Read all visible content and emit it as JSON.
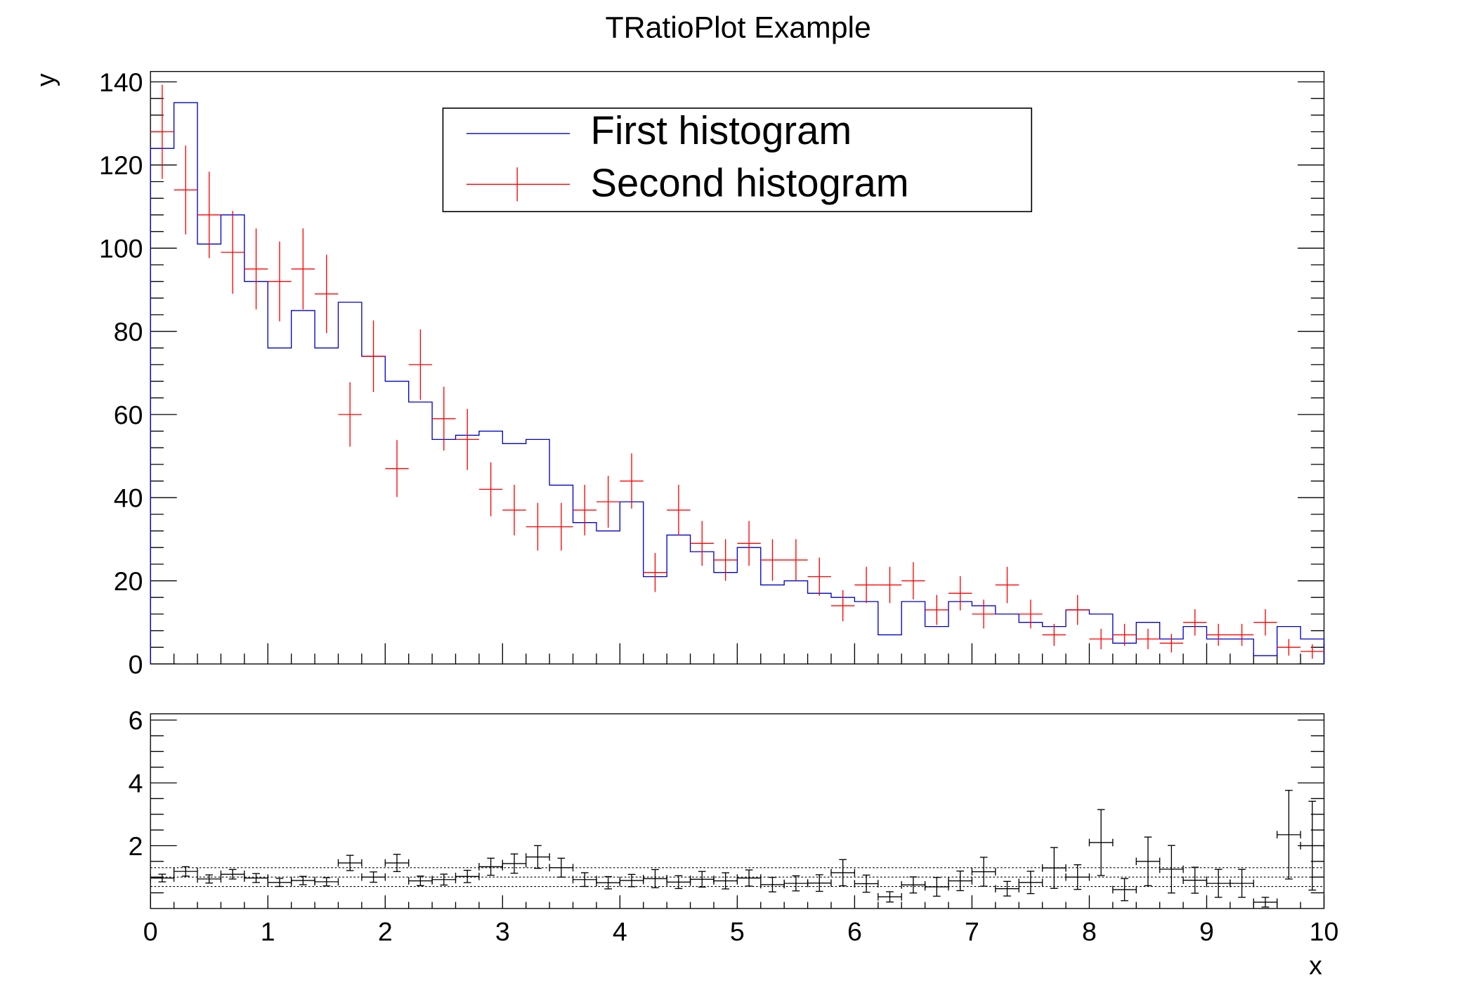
{
  "chart_data": [
    {
      "type": "bar",
      "title": "TRatioPlot Example",
      "xlabel": "",
      "ylabel": "y",
      "xlim": [
        0,
        10
      ],
      "ylim": [
        0,
        142.5
      ],
      "bin_width": 0.2,
      "grid": false,
      "legend_position": "top-center",
      "y_ticks": [
        "0",
        "20",
        "40",
        "60",
        "80",
        "100",
        "120",
        "140"
      ],
      "series": [
        {
          "name": "First histogram",
          "style": "step",
          "color": "#0000cc",
          "values": [
            124,
            135,
            101,
            108,
            92,
            76,
            85,
            76,
            87,
            74,
            68,
            63,
            54,
            55,
            56,
            53,
            54,
            43,
            34,
            32,
            39,
            21,
            31,
            27,
            22,
            28,
            19,
            20,
            17,
            16,
            15,
            7,
            15,
            9,
            15,
            14,
            12,
            10,
            9,
            13,
            12,
            5,
            10,
            6,
            9,
            6,
            6,
            2,
            9,
            6
          ]
        },
        {
          "name": "Second histogram",
          "style": "errorbar",
          "color": "#ff0000",
          "values": [
            128,
            114,
            108,
            99,
            95,
            92,
            95,
            89,
            60,
            74,
            47,
            72,
            59,
            54,
            42,
            37,
            33,
            33,
            37,
            39,
            44,
            22,
            37,
            29,
            25,
            29,
            25,
            25,
            21,
            14,
            19,
            19,
            20,
            13,
            17,
            12,
            19,
            12,
            7,
            13,
            6,
            7,
            6,
            5,
            10,
            7,
            7,
            10,
            4,
            3
          ]
        }
      ]
    },
    {
      "type": "scatter",
      "xlabel": "x",
      "ylabel": "",
      "xlim": [
        0,
        10
      ],
      "ylim": [
        0,
        6.2
      ],
      "x_ticks": [
        "0",
        "1",
        "2",
        "3",
        "4",
        "5",
        "6",
        "7",
        "8",
        "9",
        "10"
      ],
      "y_ticks": [
        "2",
        "4",
        "6"
      ],
      "reference_lines": [
        0.7,
        1.0,
        1.3
      ],
      "color": "#000000",
      "ratio_values": [
        0.97,
        1.18,
        0.94,
        1.09,
        0.97,
        0.83,
        0.89,
        0.85,
        1.45,
        1.0,
        1.45,
        0.88,
        0.92,
        1.02,
        1.33,
        1.43,
        1.64,
        1.3,
        0.92,
        0.82,
        0.89,
        0.95,
        0.84,
        0.93,
        0.88,
        0.97,
        0.76,
        0.8,
        0.81,
        1.14,
        0.79,
        0.37,
        0.75,
        0.69,
        0.88,
        1.17,
        0.63,
        0.83,
        1.29,
        1.0,
        2.1,
        0.6,
        1.5,
        1.25,
        0.9,
        0.8,
        0.8,
        0.2,
        2.35,
        2.0
      ]
    }
  ]
}
